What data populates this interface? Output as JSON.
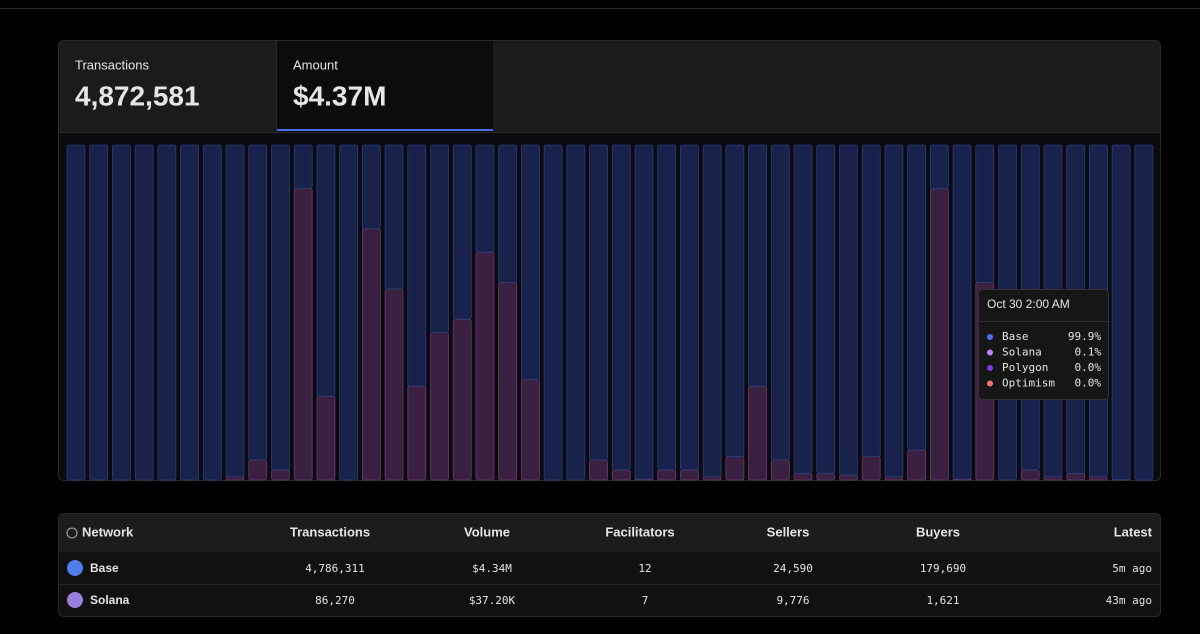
{
  "tabs": [
    {
      "label": "Transactions",
      "value": "4,872,581"
    },
    {
      "label": "Amount",
      "value": "$4.37M"
    }
  ],
  "chart_data": {
    "type": "bar",
    "stacked": true,
    "categories": [
      null,
      null,
      null,
      null,
      null,
      null,
      null,
      null,
      null,
      null,
      null,
      null,
      null,
      null,
      null,
      null,
      null,
      null,
      null,
      null,
      null,
      null,
      null,
      null,
      null,
      null,
      null,
      null,
      null,
      null,
      null,
      null,
      null,
      null,
      null,
      null,
      null,
      null,
      null,
      null,
      null,
      null,
      null,
      null,
      null,
      null,
      null,
      null
    ],
    "ylim": [
      0,
      100
    ],
    "series": [
      {
        "name": "Solana",
        "color": "#3a2142",
        "values": [
          0,
          0,
          0,
          0,
          0,
          0,
          0,
          1,
          6,
          3,
          87,
          25,
          0,
          75,
          57,
          28,
          44,
          48,
          68,
          59,
          30,
          0,
          0,
          6,
          3,
          0.3,
          3,
          3,
          1,
          7,
          28,
          6,
          2,
          2,
          1.5,
          7,
          1,
          9,
          87,
          0.3,
          59,
          0,
          3,
          1,
          2,
          1,
          0.1,
          0
        ]
      },
      {
        "name": "Base",
        "color": "#18224a",
        "values": [
          100,
          100,
          100,
          100,
          100,
          100,
          100,
          99,
          94,
          97,
          13,
          75,
          100,
          25,
          43,
          72,
          56,
          52,
          32,
          41,
          70,
          100,
          100,
          94,
          97,
          99.7,
          97,
          97,
          99,
          93,
          72,
          94,
          98,
          98,
          98.5,
          93,
          99,
          91,
          13,
          99.7,
          41,
          100,
          97,
          99,
          98,
          99,
          99.9,
          100
        ]
      }
    ]
  },
  "tooltip": {
    "title": "Oct 30 2:00 AM",
    "rows": [
      {
        "name": "Base",
        "color": "#4f6fe8",
        "value": "99.9%"
      },
      {
        "name": "Solana",
        "color": "#c084fc",
        "value": "0.1%"
      },
      {
        "name": "Polygon",
        "color": "#7c3aed",
        "value": "0.0%"
      },
      {
        "name": "Optimism",
        "color": "#f87171",
        "value": "0.0%"
      }
    ]
  },
  "table": {
    "headers": [
      "Network",
      "Transactions",
      "Volume",
      "Facilitators",
      "Sellers",
      "Buyers",
      "Latest"
    ],
    "rows": [
      [
        "Base",
        "4,786,311",
        "$4.34M",
        "12",
        "24,590",
        "179,690",
        "5m ago"
      ],
      [
        "Solana",
        "86,270",
        "$37.20K",
        "7",
        "9,776",
        "1,621",
        "43m ago"
      ]
    ]
  }
}
